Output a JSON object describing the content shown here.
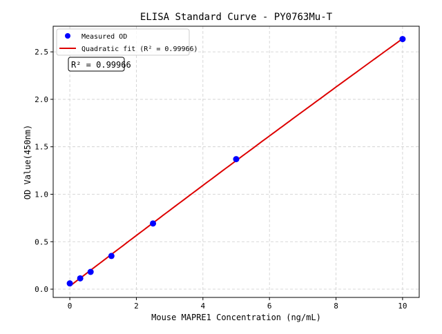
{
  "chart_data": {
    "type": "scatter",
    "title": "ELISA Standard Curve - PY0763Mu-T",
    "xlabel": "Mouse MAPRE1 Concentration (ng/mL)",
    "ylabel": "OD Value(450nm)",
    "xlim": [
      -0.5,
      10.5
    ],
    "ylim": [
      -0.087,
      2.77
    ],
    "xticks": [
      0,
      2,
      4,
      6,
      8,
      10
    ],
    "yticks": [
      0.0,
      0.5,
      1.0,
      1.5,
      2.0,
      2.5
    ],
    "xtick_labels": [
      "0",
      "2",
      "4",
      "6",
      "8",
      "10"
    ],
    "ytick_labels": [
      "0.0",
      "0.5",
      "1.0",
      "1.5",
      "2.0",
      "2.5"
    ],
    "grid": true,
    "legend_position": "top-left",
    "series": [
      {
        "name": "Measured OD",
        "kind": "scatter",
        "color": "#0000ff",
        "x": [
          0,
          0.3125,
          0.625,
          1.25,
          2.5,
          5,
          10
        ],
        "y": [
          0.061,
          0.114,
          0.182,
          0.35,
          0.692,
          1.37,
          2.635
        ]
      },
      {
        "name": "Quadratic fit (R² = 0.99966)",
        "kind": "line",
        "color": "#dd0000"
      }
    ],
    "annotation": "R² = 0.99966"
  }
}
